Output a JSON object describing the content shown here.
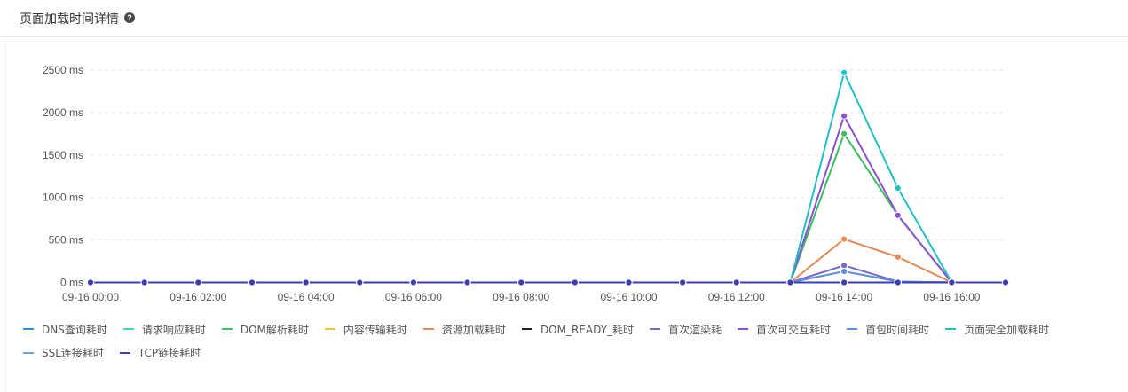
{
  "header": {
    "title": "页面加载时间详情",
    "help_icon": "question-circle-icon"
  },
  "chart_data": {
    "type": "line",
    "title": "",
    "xlabel": "",
    "ylabel": "",
    "y_unit": "ms",
    "ylim": [
      0,
      2500
    ],
    "yticks": [
      0,
      500,
      1000,
      1500,
      2000,
      2500
    ],
    "ytick_labels": [
      "0 ms",
      "500 ms",
      "1000 ms",
      "1500 ms",
      "2000 ms",
      "2500 ms"
    ],
    "x": [
      "09-16 00:00",
      "09-16 01:00",
      "09-16 02:00",
      "09-16 03:00",
      "09-16 04:00",
      "09-16 05:00",
      "09-16 06:00",
      "09-16 07:00",
      "09-16 08:00",
      "09-16 09:00",
      "09-16 10:00",
      "09-16 11:00",
      "09-16 12:00",
      "09-16 13:00",
      "09-16 14:00",
      "09-16 15:00",
      "09-16 16:00",
      "09-16 17:00"
    ],
    "xtick_labels": [
      "09-16 00:00",
      "09-16 02:00",
      "09-16 04:00",
      "09-16 06:00",
      "09-16 08:00",
      "09-16 10:00",
      "09-16 12:00",
      "09-16 14:00",
      "09-16 16:00"
    ],
    "grid": "horizontal dashed",
    "legend_position": "bottom-left",
    "series": [
      {
        "name": "DNS查询耗时",
        "color": "#2f8fd8",
        "values": [
          0,
          0,
          0,
          0,
          0,
          0,
          0,
          0,
          0,
          0,
          0,
          0,
          0,
          0,
          0,
          0,
          0,
          0
        ]
      },
      {
        "name": "请求响应耗时",
        "color": "#3dd6c7",
        "values": [
          0,
          0,
          0,
          0,
          0,
          0,
          0,
          0,
          0,
          0,
          0,
          0,
          0,
          0,
          130,
          10,
          0,
          0
        ]
      },
      {
        "name": "DOM解析耗时",
        "color": "#3dbd5e",
        "values": [
          0,
          0,
          0,
          0,
          0,
          0,
          0,
          0,
          0,
          0,
          0,
          0,
          0,
          0,
          1750,
          790,
          0,
          0
        ]
      },
      {
        "name": "内容传输耗时",
        "color": "#f5c432",
        "values": [
          0,
          0,
          0,
          0,
          0,
          0,
          0,
          0,
          0,
          0,
          0,
          0,
          0,
          0,
          0,
          0,
          0,
          0
        ]
      },
      {
        "name": "资源加载耗时",
        "color": "#e58a55",
        "values": [
          0,
          0,
          0,
          0,
          0,
          0,
          0,
          0,
          0,
          0,
          0,
          0,
          0,
          0,
          510,
          300,
          0,
          0
        ]
      },
      {
        "name": "DOM_READY_耗时",
        "color": "#1f1f3a",
        "values": [
          0,
          0,
          0,
          0,
          0,
          0,
          0,
          0,
          0,
          0,
          0,
          0,
          0,
          0,
          0,
          0,
          0,
          0
        ]
      },
      {
        "name": "首次渲染耗",
        "color": "#7a64c9",
        "values": [
          0,
          0,
          0,
          0,
          0,
          0,
          0,
          0,
          0,
          0,
          0,
          0,
          0,
          0,
          200,
          10,
          0,
          0
        ]
      },
      {
        "name": "首次可交互耗时",
        "color": "#8b4fd0",
        "values": [
          0,
          0,
          0,
          0,
          0,
          0,
          0,
          0,
          0,
          0,
          0,
          0,
          0,
          0,
          1960,
          790,
          0,
          0
        ]
      },
      {
        "name": "首包时间耗时",
        "color": "#5b8fd8",
        "values": [
          0,
          0,
          0,
          0,
          0,
          0,
          0,
          0,
          0,
          0,
          0,
          0,
          0,
          0,
          130,
          10,
          0,
          0
        ]
      },
      {
        "name": "页面完全加载耗时",
        "color": "#22bfc7",
        "values": [
          0,
          0,
          0,
          0,
          0,
          0,
          0,
          0,
          0,
          0,
          0,
          0,
          0,
          0,
          2470,
          1110,
          0,
          0
        ]
      },
      {
        "name": "SSL连接耗时",
        "color": "#6aa4e0",
        "values": [
          0,
          0,
          0,
          0,
          0,
          0,
          0,
          0,
          0,
          0,
          0,
          0,
          0,
          0,
          0,
          0,
          0,
          0
        ]
      },
      {
        "name": "TCP链接耗时",
        "color": "#3b3cb8",
        "values": [
          0,
          0,
          0,
          0,
          0,
          0,
          0,
          0,
          0,
          0,
          0,
          0,
          0,
          0,
          0,
          0,
          0,
          0
        ]
      }
    ]
  }
}
